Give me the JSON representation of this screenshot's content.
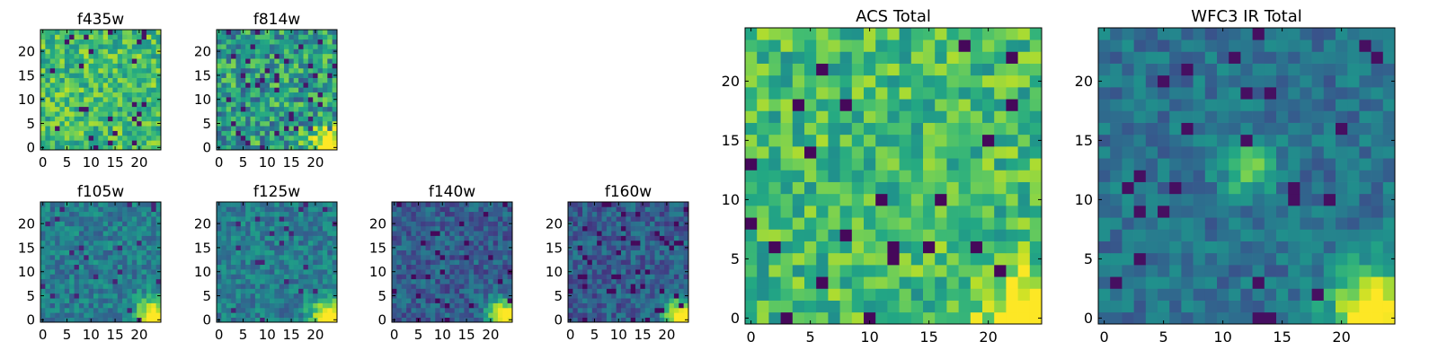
{
  "chart_data": [
    {
      "type": "heatmap",
      "title": "f435w",
      "x_ticks": [
        "0",
        "5",
        "10",
        "15",
        "20"
      ],
      "y_ticks": [
        "0",
        "5",
        "10",
        "15",
        "20"
      ],
      "xlim": [
        -0.5,
        24.5
      ],
      "ylim": [
        -0.5,
        24.5
      ],
      "grid_size": 25,
      "colormap": "viridis",
      "pattern": "acs",
      "seed": 11
    },
    {
      "type": "heatmap",
      "title": "f814w",
      "x_ticks": [
        "0",
        "5",
        "10",
        "15",
        "20"
      ],
      "y_ticks": [
        "0",
        "5",
        "10",
        "15",
        "20"
      ],
      "xlim": [
        -0.5,
        24.5
      ],
      "ylim": [
        -0.5,
        24.5
      ],
      "grid_size": 25,
      "colormap": "viridis",
      "pattern": "acs_mixed",
      "seed": 23
    },
    {
      "type": "heatmap",
      "title": "f105w",
      "x_ticks": [
        "0",
        "5",
        "10",
        "15",
        "20"
      ],
      "y_ticks": [
        "0",
        "5",
        "10",
        "15",
        "20"
      ],
      "xlim": [
        -0.5,
        24.5
      ],
      "ylim": [
        -0.5,
        24.5
      ],
      "grid_size": 25,
      "colormap": "viridis",
      "pattern": "ir",
      "seed": 37
    },
    {
      "type": "heatmap",
      "title": "f125w",
      "x_ticks": [
        "0",
        "5",
        "10",
        "15",
        "20"
      ],
      "y_ticks": [
        "0",
        "5",
        "10",
        "15",
        "20"
      ],
      "xlim": [
        -0.5,
        24.5
      ],
      "ylim": [
        -0.5,
        24.5
      ],
      "grid_size": 25,
      "colormap": "viridis",
      "pattern": "ir",
      "seed": 41
    },
    {
      "type": "heatmap",
      "title": "f140w",
      "x_ticks": [
        "0",
        "5",
        "10",
        "15",
        "20"
      ],
      "y_ticks": [
        "0",
        "5",
        "10",
        "15",
        "20"
      ],
      "xlim": [
        -0.5,
        24.5
      ],
      "ylim": [
        -0.5,
        24.5
      ],
      "grid_size": 25,
      "colormap": "viridis",
      "pattern": "ir_dark",
      "seed": 53
    },
    {
      "type": "heatmap",
      "title": "f160w",
      "x_ticks": [
        "0",
        "5",
        "10",
        "15",
        "20"
      ],
      "y_ticks": [
        "0",
        "5",
        "10",
        "15",
        "20"
      ],
      "xlim": [
        -0.5,
        24.5
      ],
      "ylim": [
        -0.5,
        24.5
      ],
      "grid_size": 25,
      "colormap": "viridis",
      "pattern": "ir_dark",
      "seed": 67
    },
    {
      "type": "heatmap",
      "title": "ACS Total",
      "x_ticks": [
        "0",
        "5",
        "10",
        "15",
        "20"
      ],
      "y_ticks": [
        "0",
        "5",
        "10",
        "15",
        "20"
      ],
      "xlim": [
        -0.5,
        24.5
      ],
      "ylim": [
        -0.5,
        24.5
      ],
      "grid_size": 25,
      "colormap": "viridis",
      "pattern": "acs_total",
      "seed": 79
    },
    {
      "type": "heatmap",
      "title": "WFC3 IR Total",
      "x_ticks": [
        "0",
        "5",
        "10",
        "15",
        "20"
      ],
      "y_ticks": [
        "0",
        "5",
        "10",
        "15",
        "20"
      ],
      "xlim": [
        -0.5,
        24.5
      ],
      "ylim": [
        -0.5,
        24.5
      ],
      "grid_size": 25,
      "colormap": "viridis",
      "pattern": "ir_total",
      "seed": 97
    }
  ]
}
